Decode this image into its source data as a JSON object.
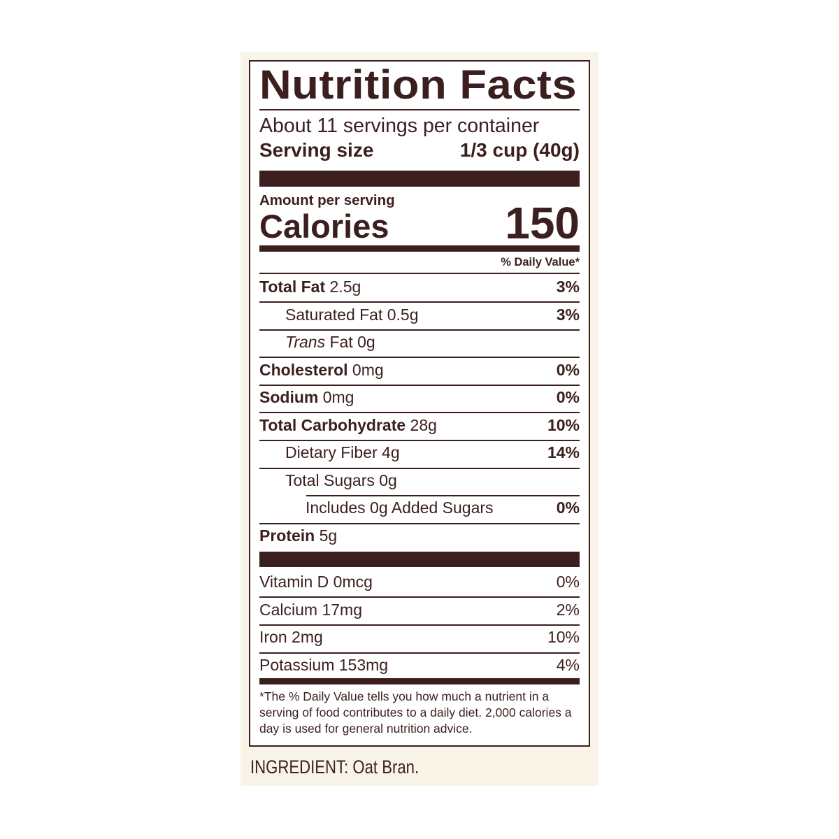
{
  "colors": {
    "ink": "#3b1f1e",
    "panel": "#f8f4e7",
    "label": "#ffffff"
  },
  "title": "Nutrition Facts",
  "servings": "About 11 servings per container",
  "serving_size": {
    "label": "Serving size",
    "value": "1/3 cup (40g)"
  },
  "amount_per_serving": "Amount per serving",
  "calories": {
    "label": "Calories",
    "value": "150"
  },
  "dv_header": "% Daily Value*",
  "nutrients": [
    {
      "name": "Total Fat",
      "amount": "2.5g",
      "dv": "3%"
    },
    {
      "name": "Saturated Fat",
      "amount": "0.5g",
      "dv": "3%"
    },
    {
      "name": "Trans",
      "name_rest": "Fat",
      "amount": "0g",
      "dv": ""
    },
    {
      "name": "Cholesterol",
      "amount": "0mg",
      "dv": "0%"
    },
    {
      "name": "Sodium",
      "amount": "0mg",
      "dv": "0%"
    },
    {
      "name": "Total Carbohydrate",
      "amount": "28g",
      "dv": "10%"
    },
    {
      "name": "Dietary Fiber",
      "amount": "4g",
      "dv": "14%"
    },
    {
      "name": "Total Sugars",
      "amount": "0g",
      "dv": ""
    },
    {
      "name": "Includes 0g Added Sugars",
      "amount": "",
      "dv": "0%"
    },
    {
      "name": "Protein",
      "amount": "5g",
      "dv": ""
    }
  ],
  "vitamins": [
    {
      "name": "Vitamin D 0mcg",
      "dv": "0%"
    },
    {
      "name": "Calcium 17mg",
      "dv": "2%"
    },
    {
      "name": "Iron 2mg",
      "dv": "10%"
    },
    {
      "name": "Potassium 153mg",
      "dv": "4%"
    }
  ],
  "footnote": "*The % Daily Value tells you how much a nutrient in a serving of food contributes to a daily diet. 2,000 calories a day is used for general nutrition advice.",
  "ingredients": "INGREDIENT: Oat Bran."
}
